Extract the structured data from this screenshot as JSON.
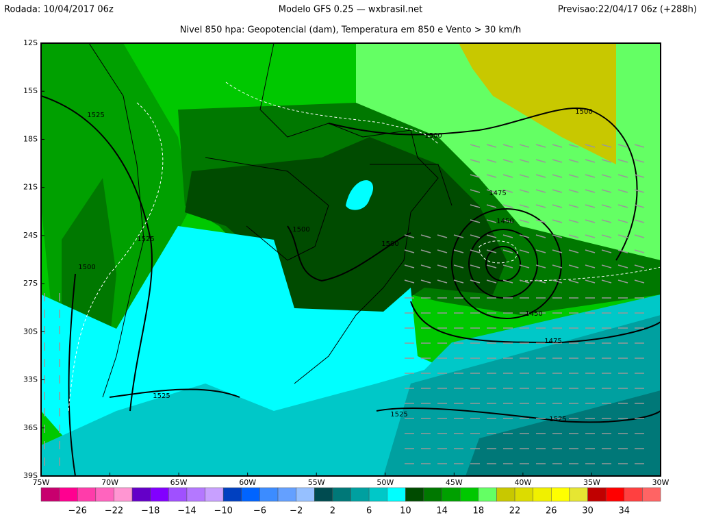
{
  "header": {
    "left": "Rodada: 10/04/2017 06z",
    "center": "Modelo GFS 0.25 — wxbrasil.net",
    "right": "Previsao:22/04/17 06z (+288h)",
    "subtitle": "Nivel 850 hpa: Geopotencial (dam), Temperatura em 850 e Vento > 30 km/h"
  },
  "map": {
    "lat_labels": [
      "12S",
      "15S",
      "18S",
      "21S",
      "24S",
      "27S",
      "30S",
      "33S",
      "36S",
      "39S"
    ],
    "lon_labels": [
      "75W",
      "70W",
      "65W",
      "60W",
      "55W",
      "50W",
      "45W",
      "40W",
      "35W",
      "30W"
    ],
    "contour_labels": [
      "1525",
      "1500",
      "1500",
      "1500",
      "1500",
      "1525",
      "1475",
      "1450",
      "1450",
      "1475",
      "1525",
      "1525",
      "1525",
      "1500"
    ]
  },
  "colorbar": {
    "colors": [
      "#c8006e",
      "#ff0090",
      "#ff3caa",
      "#ff64be",
      "#ff96d2",
      "#6400c8",
      "#8200ff",
      "#a050ff",
      "#b478ff",
      "#c8a0ff",
      "#0040c0",
      "#0064ff",
      "#3c8cff",
      "#64a0ff",
      "#96c0ff",
      "#004b50",
      "#007878",
      "#00a0a0",
      "#00c8c8",
      "#00ffff",
      "#004b00",
      "#007800",
      "#00a000",
      "#00c800",
      "#64ff64",
      "#c8c800",
      "#dcdc00",
      "#f0f000",
      "#ffff00",
      "#e6e632",
      "#c00000",
      "#ff0000",
      "#ff4040",
      "#ff6464"
    ],
    "labels": [
      "−26",
      "−22",
      "−18",
      "−14",
      "−10",
      "−6",
      "−2",
      "2",
      "6",
      "10",
      "14",
      "18",
      "22",
      "26",
      "30",
      "34"
    ]
  }
}
